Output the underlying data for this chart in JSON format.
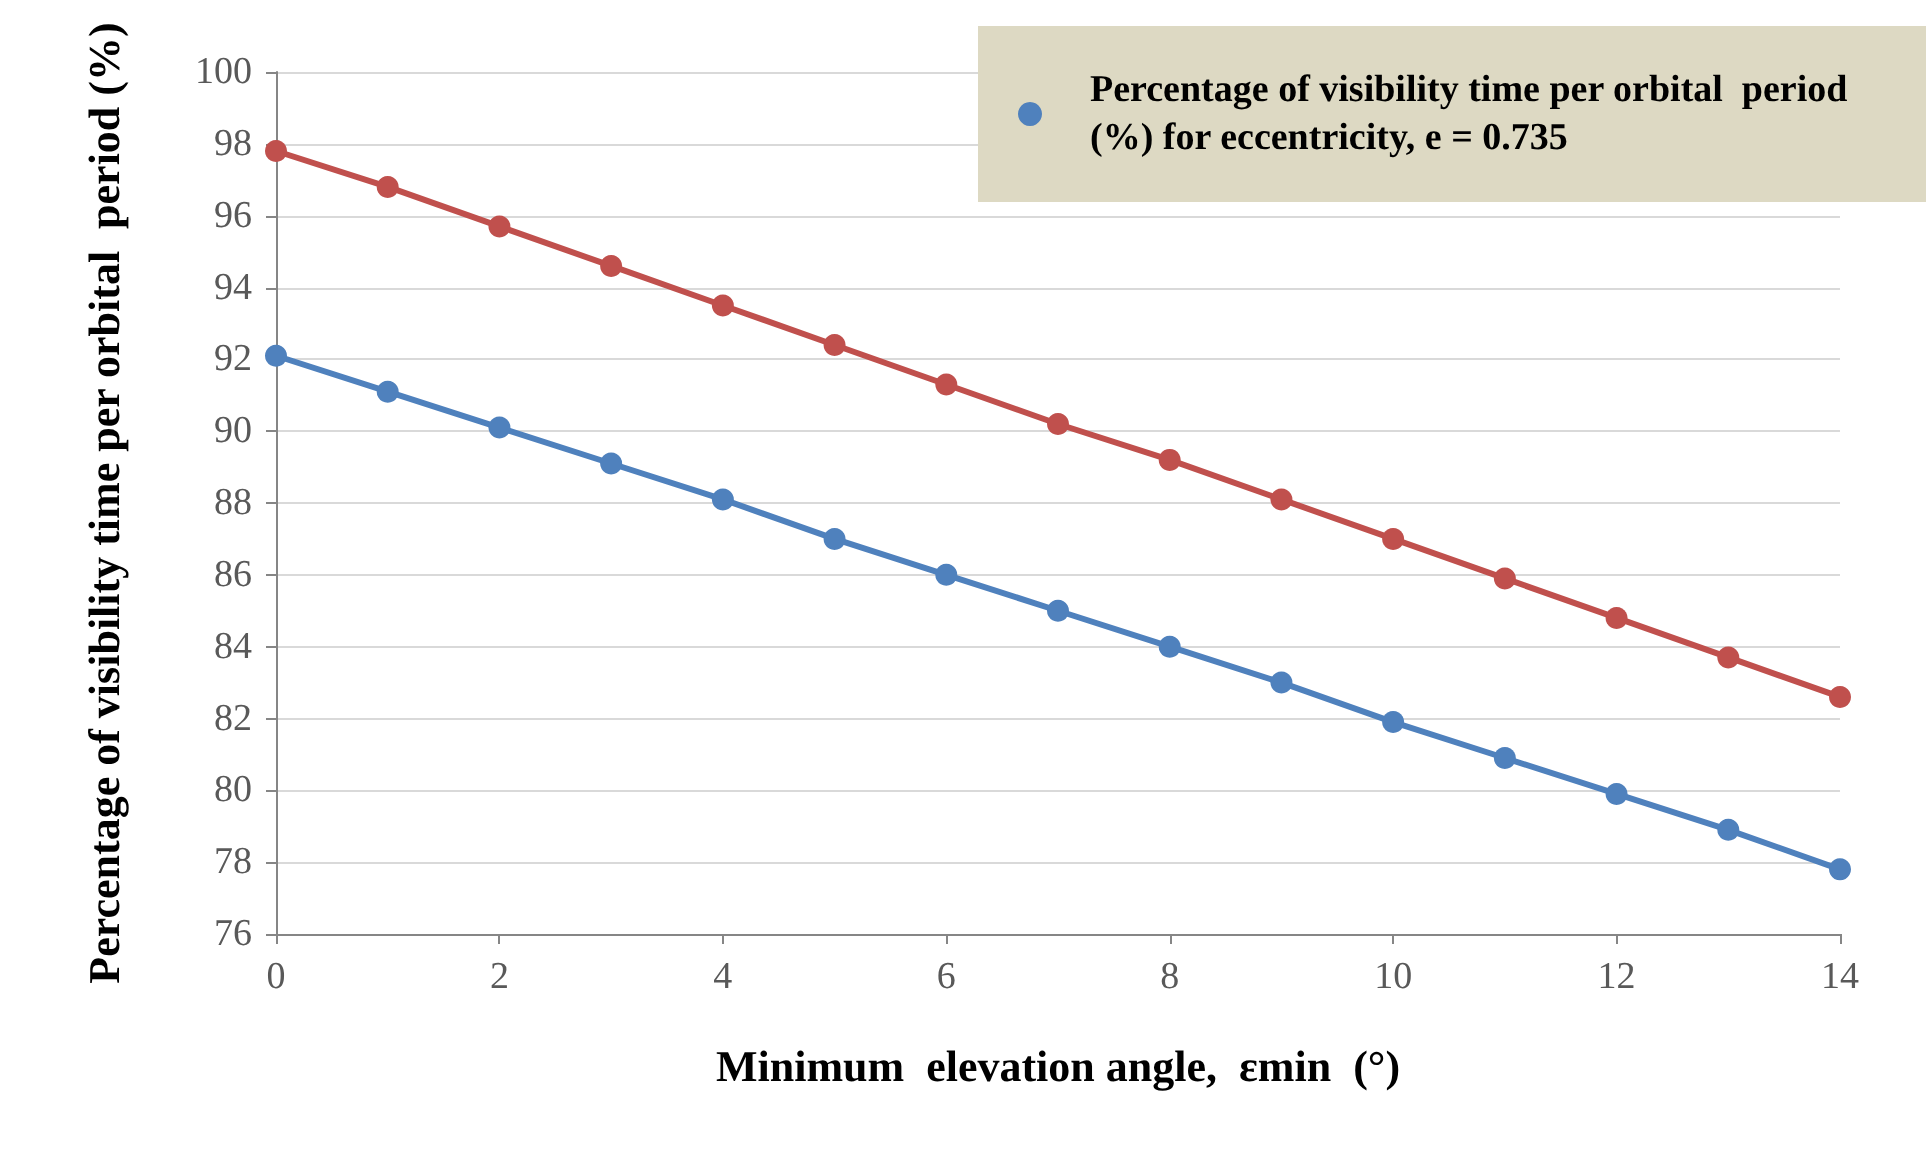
{
  "chart_data": {
    "type": "line",
    "xlabel": "Minimum  elevation angle,  εmin  (°)",
    "ylabel": "Percentage of visibility time per orbital  period (%)",
    "x": [
      0,
      1,
      2,
      3,
      4,
      5,
      6,
      7,
      8,
      9,
      10,
      11,
      12,
      13,
      14
    ],
    "series": [
      {
        "name": "Percentage of visibility time per orbital  period (%) for eccentricity, e = 0.735",
        "color": "#4f81bd",
        "values": [
          92.1,
          91.1,
          90.1,
          89.1,
          88.1,
          87.0,
          86.0,
          85.0,
          84.0,
          83.0,
          81.9,
          80.9,
          79.9,
          78.9,
          77.8
        ]
      },
      {
        "color": "#c0504d",
        "values": [
          97.8,
          96.8,
          95.7,
          94.6,
          93.5,
          92.4,
          91.3,
          90.2,
          89.2,
          88.1,
          87.0,
          85.9,
          84.8,
          83.7,
          82.6
        ]
      }
    ],
    "xlim": [
      0,
      14
    ],
    "xticks": [
      0,
      2,
      4,
      6,
      8,
      10,
      12,
      14
    ],
    "ylim": [
      76,
      100
    ],
    "yticks": [
      76,
      78,
      80,
      82,
      84,
      86,
      88,
      90,
      92,
      94,
      96,
      98,
      100
    ],
    "grid": "y",
    "legend": "top right",
    "marker": "circle",
    "line_style": "solid"
  }
}
